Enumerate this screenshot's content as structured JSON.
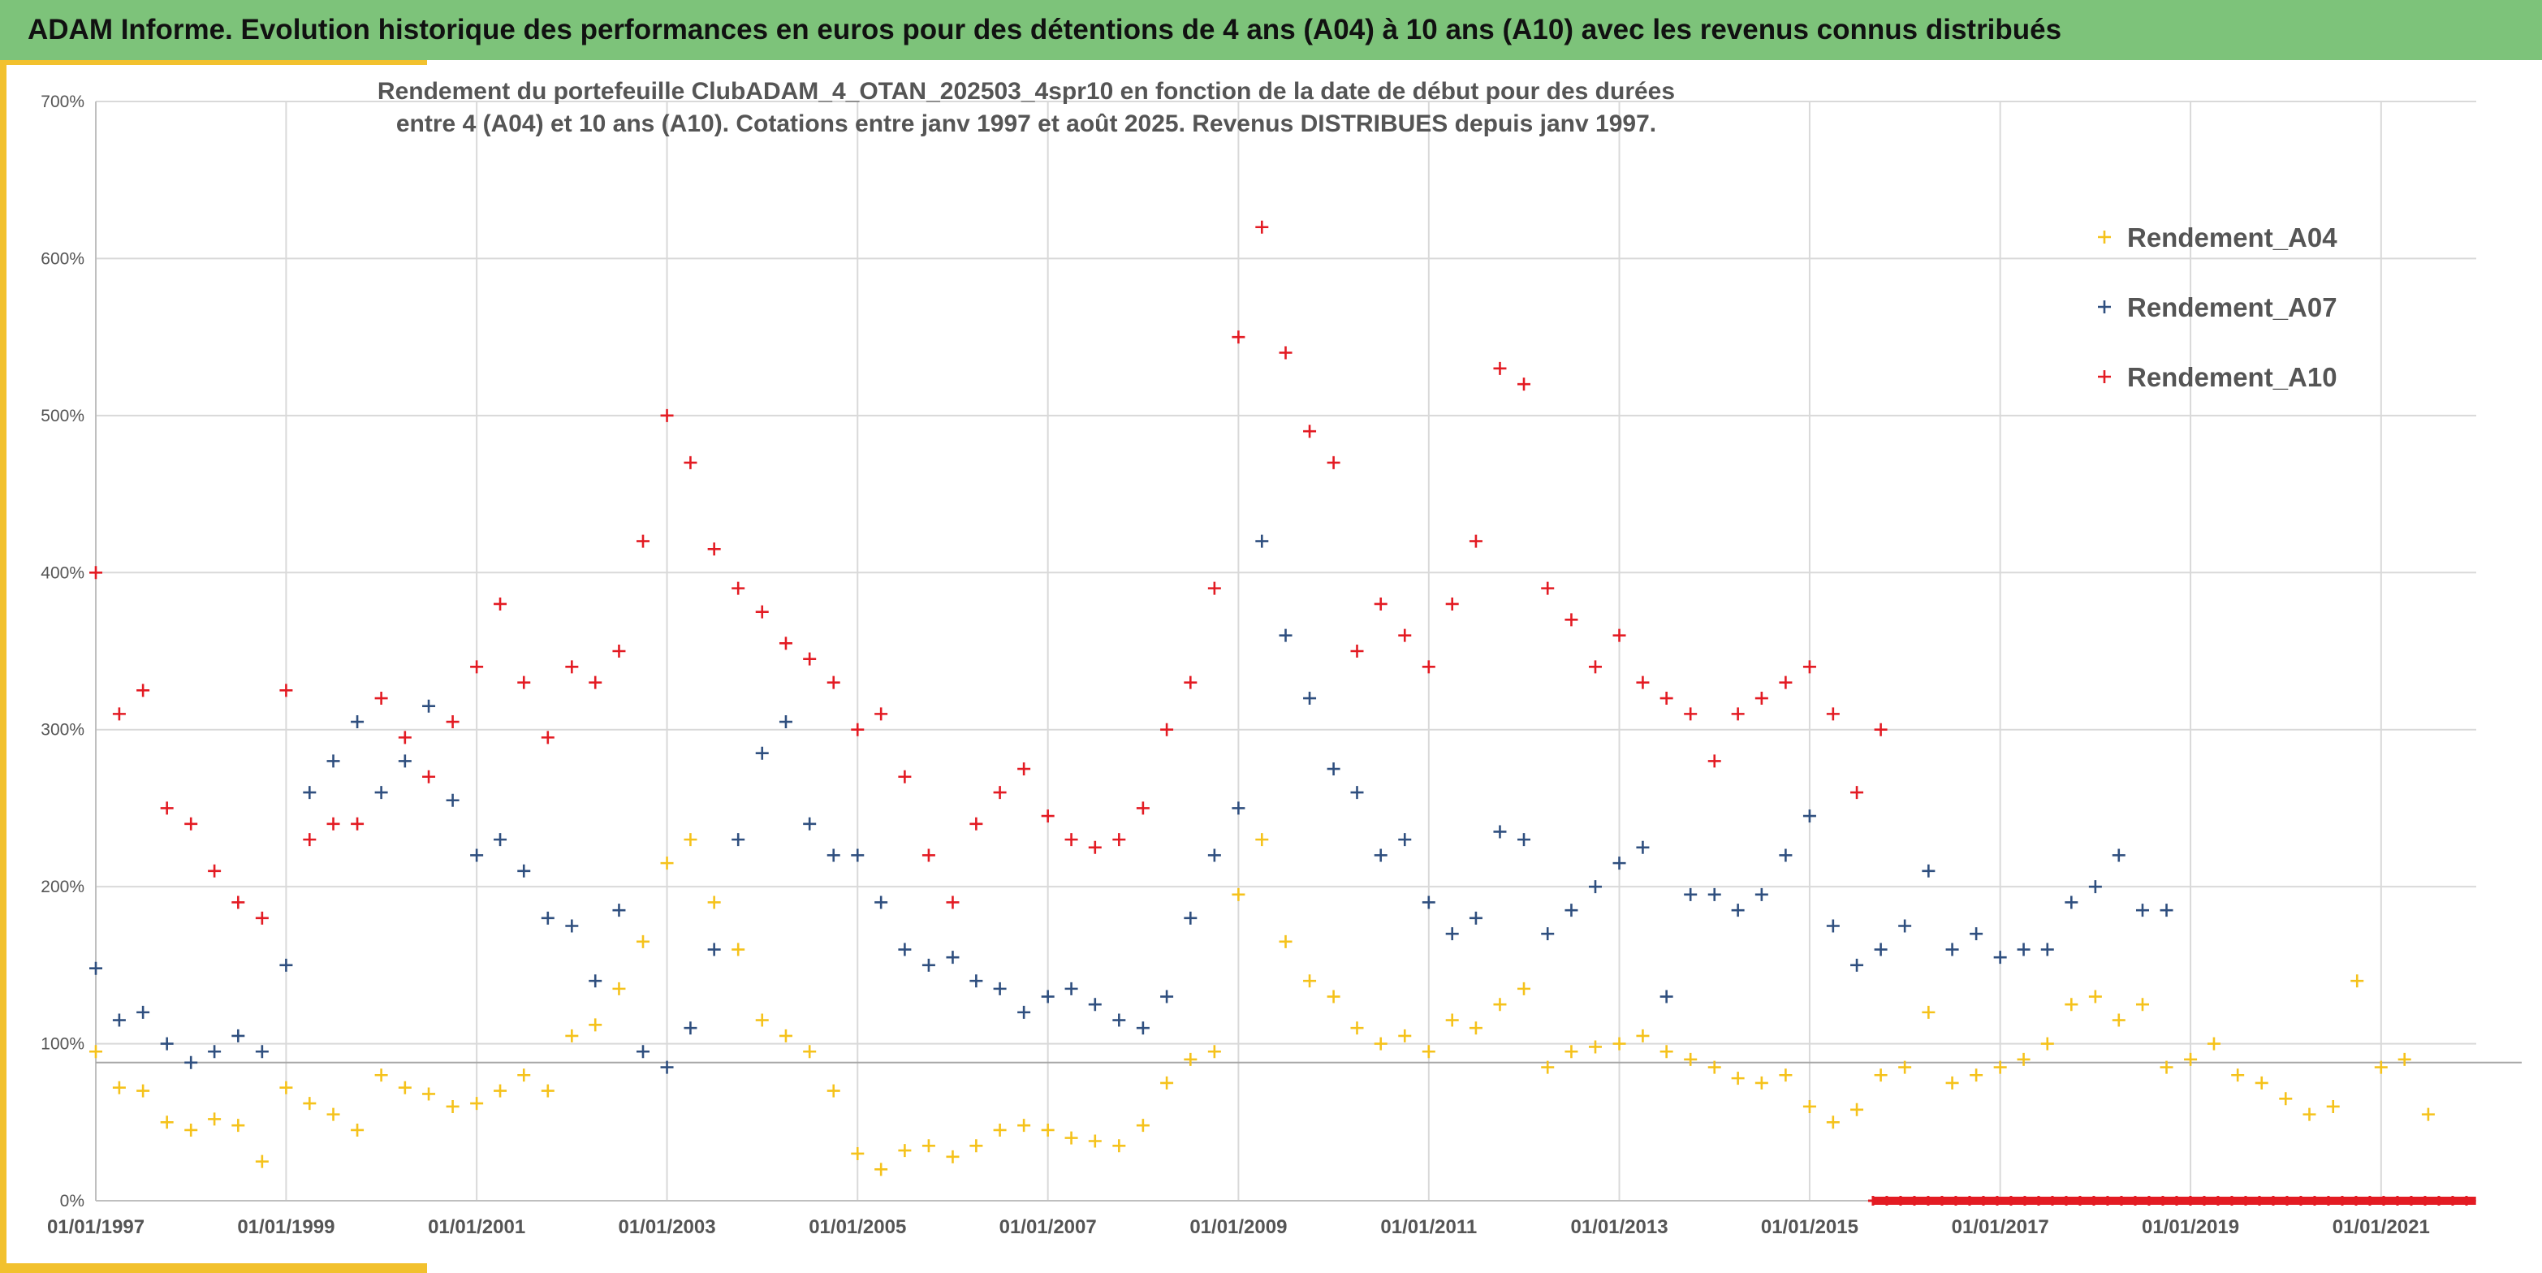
{
  "header": {
    "title": "ADAM Informe. Evolution historique des performances en euros pour des détentions de 4 ans (A04) à 10 ans (A10) avec les revenus connus distribués"
  },
  "colors": {
    "banner": "#7dc37a",
    "accent": "#f2c12e",
    "A04": "#f5c21b",
    "A07": "#2f4f7f",
    "A10": "#e31b23"
  },
  "chart_data": {
    "type": "scatter",
    "marker": "+",
    "title_lines": [
      "Rendement du portefeuille ClubADAM_4_OTAN_202503_4spr10  en fonction de la date de début pour des durées",
      "entre 4 (A04) et 10 ans (A10). Cotations entre janv 1997 et août 2025. Revenus DISTRIBUES depuis janv 1997."
    ],
    "xlabel": "",
    "ylabel": "",
    "x_range": [
      "1997-01-01",
      "2022-01-01"
    ],
    "ylim": [
      0,
      7
    ],
    "y_ticks": [
      0,
      1,
      2,
      3,
      4,
      5,
      6,
      7
    ],
    "y_tick_labels": [
      "0%",
      "100%",
      "200%",
      "300%",
      "400%",
      "500%",
      "600%",
      "700%"
    ],
    "x_tick_labels": [
      "01/01/1997",
      "01/01/1999",
      "01/01/2001",
      "01/01/2003",
      "01/01/2005",
      "01/01/2007",
      "01/01/2009",
      "01/01/2011",
      "01/01/2013",
      "01/01/2015",
      "01/01/2017",
      "01/01/2019",
      "01/01/2021"
    ],
    "x_tick_dates": [
      "1997-01-01",
      "1999-01-01",
      "2001-01-01",
      "2003-01-01",
      "2005-01-01",
      "2007-01-01",
      "2009-01-01",
      "2011-01-01",
      "2013-01-01",
      "2015-01-01",
      "2017-01-01",
      "2019-01-01",
      "2021-01-01"
    ],
    "grid": true,
    "reference_line_y": 0.88,
    "legend_position": "top-right",
    "legend": [
      "Rendement_A04",
      "Rendement_A07",
      "Rendement_A10"
    ],
    "series": [
      {
        "name": "Rendement_A04",
        "color": "#f5c21b",
        "x": [
          "1997-01-01",
          "1997-04-01",
          "1997-07-01",
          "1997-10-01",
          "1998-01-01",
          "1998-04-01",
          "1998-07-01",
          "1998-10-01",
          "1999-01-01",
          "1999-04-01",
          "1999-07-01",
          "1999-10-01",
          "2000-01-01",
          "2000-04-01",
          "2000-07-01",
          "2000-10-01",
          "2001-01-01",
          "2001-04-01",
          "2001-07-01",
          "2001-10-01",
          "2002-01-01",
          "2002-04-01",
          "2002-07-01",
          "2002-10-01",
          "2003-01-01",
          "2003-04-01",
          "2003-07-01",
          "2003-10-01",
          "2004-01-01",
          "2004-04-01",
          "2004-07-01",
          "2004-10-01",
          "2005-01-01",
          "2005-04-01",
          "2005-07-01",
          "2005-10-01",
          "2006-01-01",
          "2006-04-01",
          "2006-07-01",
          "2006-10-01",
          "2007-01-01",
          "2007-04-01",
          "2007-07-01",
          "2007-10-01",
          "2008-01-01",
          "2008-04-01",
          "2008-07-01",
          "2008-10-01",
          "2009-01-01",
          "2009-04-01",
          "2009-07-01",
          "2009-10-01",
          "2010-01-01",
          "2010-04-01",
          "2010-07-01",
          "2010-10-01",
          "2011-01-01",
          "2011-04-01",
          "2011-07-01",
          "2011-10-01",
          "2012-01-01",
          "2012-04-01",
          "2012-07-01",
          "2012-10-01",
          "2013-01-01",
          "2013-04-01",
          "2013-07-01",
          "2013-10-01",
          "2014-01-01",
          "2014-04-01",
          "2014-07-01",
          "2014-10-01",
          "2015-01-01",
          "2015-04-01",
          "2015-07-01",
          "2015-10-01",
          "2016-01-01",
          "2016-04-01",
          "2016-07-01",
          "2016-10-01",
          "2017-01-01",
          "2017-04-01",
          "2017-07-01",
          "2017-10-01",
          "2018-01-01",
          "2018-04-01",
          "2018-07-01",
          "2018-10-01",
          "2019-01-01",
          "2019-04-01",
          "2019-07-01",
          "2019-10-01",
          "2020-01-01",
          "2020-04-01",
          "2020-07-01",
          "2020-10-01",
          "2021-01-01",
          "2021-04-01",
          "2021-07-01"
        ],
        "values": [
          0.95,
          0.72,
          0.7,
          0.5,
          0.45,
          0.52,
          0.48,
          0.25,
          0.72,
          0.62,
          0.55,
          0.45,
          0.8,
          0.72,
          0.68,
          0.6,
          0.62,
          0.7,
          0.8,
          0.7,
          1.05,
          1.12,
          1.35,
          1.65,
          2.15,
          2.3,
          1.9,
          1.6,
          1.15,
          1.05,
          0.95,
          0.7,
          0.3,
          0.2,
          0.32,
          0.35,
          0.28,
          0.35,
          0.45,
          0.48,
          0.45,
          0.4,
          0.38,
          0.35,
          0.48,
          0.75,
          0.9,
          0.95,
          1.95,
          2.3,
          1.65,
          1.4,
          1.3,
          1.1,
          1.0,
          1.05,
          0.95,
          1.15,
          1.1,
          1.25,
          1.35,
          0.85,
          0.95,
          0.98,
          1.0,
          1.05,
          0.95,
          0.9,
          0.85,
          0.78,
          0.75,
          0.8,
          0.6,
          0.5,
          0.58,
          0.8,
          0.85,
          1.2,
          0.75,
          0.8,
          0.85,
          0.9,
          1.0,
          1.25,
          1.3,
          1.15,
          1.25,
          0.85,
          0.9,
          1.0,
          0.8,
          0.75,
          0.65,
          0.55,
          0.6,
          1.4,
          0.85,
          0.9,
          0.55
        ]
      },
      {
        "name": "Rendement_A07",
        "color": "#2f4f7f",
        "x": [
          "1997-01-01",
          "1997-04-01",
          "1997-07-01",
          "1997-10-01",
          "1998-01-01",
          "1998-04-01",
          "1998-07-01",
          "1998-10-01",
          "1999-01-01",
          "1999-04-01",
          "1999-07-01",
          "1999-10-01",
          "2000-01-01",
          "2000-04-01",
          "2000-07-01",
          "2000-10-01",
          "2001-01-01",
          "2001-04-01",
          "2001-07-01",
          "2001-10-01",
          "2002-01-01",
          "2002-04-01",
          "2002-07-01",
          "2002-10-01",
          "2003-01-01",
          "2003-04-01",
          "2003-07-01",
          "2003-10-01",
          "2004-01-01",
          "2004-04-01",
          "2004-07-01",
          "2004-10-01",
          "2005-01-01",
          "2005-04-01",
          "2005-07-01",
          "2005-10-01",
          "2006-01-01",
          "2006-04-01",
          "2006-07-01",
          "2006-10-01",
          "2007-01-01",
          "2007-04-01",
          "2007-07-01",
          "2007-10-01",
          "2008-01-01",
          "2008-04-01",
          "2008-07-01",
          "2008-10-01",
          "2009-01-01",
          "2009-04-01",
          "2009-07-01",
          "2009-10-01",
          "2010-01-01",
          "2010-04-01",
          "2010-07-01",
          "2010-10-01",
          "2011-01-01",
          "2011-04-01",
          "2011-07-01",
          "2011-10-01",
          "2012-01-01",
          "2012-04-01",
          "2012-07-01",
          "2012-10-01",
          "2013-01-01",
          "2013-04-01",
          "2013-07-01",
          "2013-10-01",
          "2014-01-01",
          "2014-04-01",
          "2014-07-01",
          "2014-10-01",
          "2015-01-01",
          "2015-04-01",
          "2015-07-01",
          "2015-10-01",
          "2016-01-01",
          "2016-04-01",
          "2016-07-01",
          "2016-10-01",
          "2017-01-01",
          "2017-04-01",
          "2017-07-01",
          "2017-10-01",
          "2018-01-01",
          "2018-04-01",
          "2018-07-01",
          "2018-10-01"
        ],
        "values": [
          1.48,
          1.15,
          1.2,
          1.0,
          0.88,
          0.95,
          1.05,
          0.95,
          1.5,
          2.6,
          2.8,
          3.05,
          2.6,
          2.8,
          3.15,
          2.55,
          2.2,
          2.3,
          2.1,
          1.8,
          1.75,
          1.4,
          1.85,
          0.95,
          0.85,
          1.1,
          1.6,
          2.3,
          2.85,
          3.05,
          2.4,
          2.2,
          2.2,
          1.9,
          1.6,
          1.5,
          1.55,
          1.4,
          1.35,
          1.2,
          1.3,
          1.35,
          1.25,
          1.15,
          1.1,
          1.3,
          1.8,
          2.2,
          2.5,
          4.2,
          3.6,
          3.2,
          2.75,
          2.6,
          2.2,
          2.3,
          1.9,
          1.7,
          1.8,
          2.35,
          2.3,
          1.7,
          1.85,
          2.0,
          2.15,
          2.25,
          1.3,
          1.95,
          1.95,
          1.85,
          1.95,
          2.2,
          2.45,
          1.75,
          1.5,
          1.6,
          1.75,
          2.1,
          1.6,
          1.7,
          1.55,
          1.6,
          1.6,
          1.9,
          2.0,
          2.2,
          1.85,
          1.85
        ]
      },
      {
        "name": "Rendement_A10",
        "color": "#e31b23",
        "x": [
          "1997-01-01",
          "1997-04-01",
          "1997-07-01",
          "1997-10-01",
          "1998-01-01",
          "1998-04-01",
          "1998-07-01",
          "1998-10-01",
          "1999-01-01",
          "1999-04-01",
          "1999-07-01",
          "1999-10-01",
          "2000-01-01",
          "2000-04-01",
          "2000-07-01",
          "2000-10-01",
          "2001-01-01",
          "2001-04-01",
          "2001-07-01",
          "2001-10-01",
          "2002-01-01",
          "2002-04-01",
          "2002-07-01",
          "2002-10-01",
          "2003-01-01",
          "2003-04-01",
          "2003-07-01",
          "2003-10-01",
          "2004-01-01",
          "2004-04-01",
          "2004-07-01",
          "2004-10-01",
          "2005-01-01",
          "2005-04-01",
          "2005-07-01",
          "2005-10-01",
          "2006-01-01",
          "2006-04-01",
          "2006-07-01",
          "2006-10-01",
          "2007-01-01",
          "2007-04-01",
          "2007-07-01",
          "2007-10-01",
          "2008-01-01",
          "2008-04-01",
          "2008-07-01",
          "2008-10-01",
          "2009-01-01",
          "2009-04-01",
          "2009-07-01",
          "2009-10-01",
          "2010-01-01",
          "2010-04-01",
          "2010-07-01",
          "2010-10-01",
          "2011-01-01",
          "2011-04-01",
          "2011-07-01",
          "2011-10-01",
          "2012-01-01",
          "2012-04-01",
          "2012-07-01",
          "2012-10-01",
          "2013-01-01",
          "2013-04-01",
          "2013-07-01",
          "2013-10-01",
          "2014-01-01",
          "2014-04-01",
          "2014-07-01",
          "2014-10-01",
          "2015-01-01",
          "2015-04-01",
          "2015-07-01",
          "2015-10-01"
        ],
        "values": [
          4.0,
          3.1,
          3.25,
          2.5,
          2.4,
          2.1,
          1.9,
          1.8,
          3.25,
          2.3,
          2.4,
          2.4,
          3.2,
          2.95,
          2.7,
          3.05,
          3.4,
          3.8,
          3.3,
          2.95,
          3.4,
          3.3,
          3.5,
          4.2,
          5.0,
          4.7,
          4.15,
          3.9,
          3.75,
          3.55,
          3.45,
          3.3,
          3.0,
          3.1,
          2.7,
          2.2,
          1.9,
          2.4,
          2.6,
          2.75,
          2.45,
          2.3,
          2.25,
          2.3,
          2.5,
          3.0,
          3.3,
          3.9,
          5.5,
          6.2,
          5.4,
          4.9,
          4.7,
          3.5,
          3.8,
          3.6,
          3.4,
          3.8,
          4.2,
          5.3,
          5.2,
          3.9,
          3.7,
          3.4,
          3.6,
          3.3,
          3.2,
          3.1,
          2.8,
          3.1,
          3.2,
          3.3,
          3.4,
          3.1,
          2.6,
          3.0
        ]
      },
      {
        "name": "",
        "color": "#e31b23",
        "x": [
          "2015-09-01",
          "2021-12-31"
        ],
        "values": [
          0,
          0
        ],
        "baseline": true
      }
    ]
  }
}
